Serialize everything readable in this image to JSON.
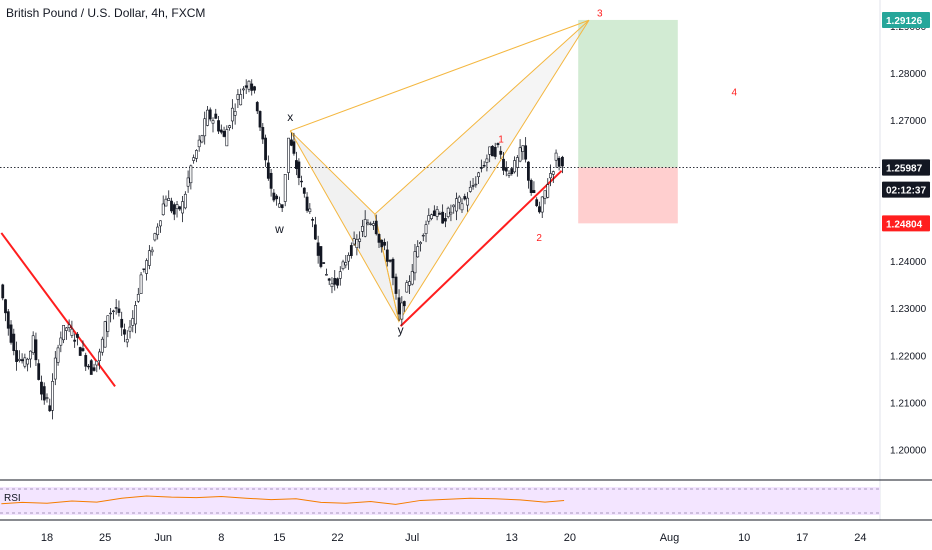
{
  "header": {
    "title": "British Pound / U.S. Dollar, 4h, FXCM"
  },
  "rsi": {
    "label": "RSI"
  },
  "chart_data": {
    "type": "candlestick",
    "title": "British Pound / U.S. Dollar, 4h, FXCM",
    "ylim": [
      1.1935,
      1.2955
    ],
    "y_ticks": [
      "1.20000",
      "1.21000",
      "1.22000",
      "1.23000",
      "1.24000",
      "1.27000",
      "1.28000",
      "1.29000"
    ],
    "x_ticks": [
      {
        "label": "18",
        "day": 18
      },
      {
        "label": "25",
        "day": 25
      },
      {
        "label": "Jun",
        "day": 32
      },
      {
        "label": "8",
        "day": 39
      },
      {
        "label": "15",
        "day": 46
      },
      {
        "label": "22",
        "day": 53
      },
      {
        "label": "Jul",
        "day": 62
      },
      {
        "label": "13",
        "day": 74
      },
      {
        "label": "20",
        "day": 81
      },
      {
        "label": "Aug",
        "day": 93
      },
      {
        "label": "10",
        "day": 102
      },
      {
        "label": "17",
        "day": 109
      },
      {
        "label": "24",
        "day": 116
      }
    ],
    "price_labels": [
      {
        "name": "target",
        "value": "1.29126",
        "price": 1.29126,
        "color": "#26a69a"
      },
      {
        "name": "entry",
        "value": "1.25992",
        "price": 1.25992,
        "color": "#131722"
      },
      {
        "name": "last",
        "value": "1.25987",
        "price": 1.25987,
        "color": "#131722"
      },
      {
        "name": "countdown",
        "value": "02:12:37",
        "price": 1.2552,
        "color": "#131722"
      },
      {
        "name": "stop",
        "value": "1.24804",
        "price": 1.24804,
        "color": "#ff1e1e"
      }
    ],
    "pattern_points": [
      {
        "label": "w",
        "day": 46.0,
        "price": 1.249
      },
      {
        "label": "x",
        "day": 47.3,
        "price": 1.2677
      },
      {
        "label": "y",
        "day": 60.6,
        "price": 1.2275
      },
      {
        "label": "3",
        "day": 83.3,
        "price": 1.291
      }
    ],
    "harmonic": {
      "p0": {
        "day": 47.3,
        "price": 1.2677
      },
      "p1": {
        "day": 57.5,
        "price": 1.25
      },
      "p2": {
        "day": 60.4,
        "price": 1.2272
      },
      "p3": {
        "day": 83.3,
        "price": 1.2912
      }
    },
    "wave_labels": [
      {
        "label": "1",
        "day": 72.7,
        "price": 1.2652
      },
      {
        "label": "2",
        "day": 77.3,
        "price": 1.2443
      },
      {
        "label": "3",
        "day": 84.6,
        "price": 1.292
      },
      {
        "label": "4",
        "day": 100.8,
        "price": 1.2752
      }
    ],
    "trendlines": [
      {
        "from": {
          "day": 12.5,
          "price": 1.246
        },
        "to": {
          "day": 26.2,
          "price": 1.2134
        }
      },
      {
        "from": {
          "day": 60.6,
          "price": 1.2262
        },
        "to": {
          "day": 80.0,
          "price": 1.2592
        }
      }
    ],
    "position": {
      "start_day": 82.0,
      "end_day": 94.0,
      "target": 1.29126,
      "entry": 1.25992,
      "stop": 1.24804
    },
    "ohlc_path": [
      [
        12.5,
        1.235
      ],
      [
        13.5,
        1.226
      ],
      [
        14.5,
        1.22
      ],
      [
        15.5,
        1.218
      ],
      [
        16.5,
        1.223
      ],
      [
        17.5,
        1.212
      ],
      [
        18.5,
        1.209
      ],
      [
        19.5,
        1.223
      ],
      [
        20.5,
        1.226
      ],
      [
        21.5,
        1.224
      ],
      [
        22.5,
        1.22
      ],
      [
        23.5,
        1.217
      ],
      [
        24.5,
        1.22
      ],
      [
        25.5,
        1.229
      ],
      [
        26.5,
        1.23
      ],
      [
        27.5,
        1.223
      ],
      [
        28.5,
        1.228
      ],
      [
        29.5,
        1.237
      ],
      [
        30.5,
        1.241
      ],
      [
        31.5,
        1.248
      ],
      [
        32.5,
        1.254
      ],
      [
        33.5,
        1.25
      ],
      [
        34.5,
        1.252
      ],
      [
        35.5,
        1.26
      ],
      [
        36.5,
        1.265
      ],
      [
        37.5,
        1.271
      ],
      [
        38.5,
        1.27
      ],
      [
        39.5,
        1.266
      ],
      [
        40.5,
        1.272
      ],
      [
        41.5,
        1.276
      ],
      [
        42.5,
        1.279
      ],
      [
        43.5,
        1.273
      ],
      [
        44.5,
        1.261
      ],
      [
        45.5,
        1.253
      ],
      [
        46.5,
        1.252
      ],
      [
        47.3,
        1.266
      ],
      [
        48.5,
        1.258
      ],
      [
        49.5,
        1.252
      ],
      [
        50.5,
        1.245
      ],
      [
        51.5,
        1.238
      ],
      [
        52.5,
        1.235
      ],
      [
        53.5,
        1.237
      ],
      [
        54.5,
        1.242
      ],
      [
        55.5,
        1.244
      ],
      [
        56.5,
        1.248
      ],
      [
        57.5,
        1.249
      ],
      [
        58.5,
        1.243
      ],
      [
        59.5,
        1.24
      ],
      [
        60.6,
        1.228
      ],
      [
        61.5,
        1.234
      ],
      [
        62.5,
        1.241
      ],
      [
        63.5,
        1.247
      ],
      [
        64.5,
        1.251
      ],
      [
        65.5,
        1.249
      ],
      [
        66.5,
        1.25
      ],
      [
        67.5,
        1.252
      ],
      [
        68.5,
        1.253
      ],
      [
        69.5,
        1.256
      ],
      [
        70.5,
        1.26
      ],
      [
        71.5,
        1.263
      ],
      [
        72.5,
        1.264
      ],
      [
        73.5,
        1.259
      ],
      [
        74.5,
        1.26
      ],
      [
        75.5,
        1.264
      ],
      [
        76.5,
        1.255
      ],
      [
        77.5,
        1.25
      ],
      [
        78.5,
        1.257
      ],
      [
        79.5,
        1.262
      ],
      [
        80.3,
        1.2599
      ]
    ],
    "rsi_path": [
      [
        12.5,
        40
      ],
      [
        15,
        45
      ],
      [
        18,
        42
      ],
      [
        21,
        50
      ],
      [
        24,
        46
      ],
      [
        27,
        60
      ],
      [
        30,
        68
      ],
      [
        33,
        64
      ],
      [
        36,
        62
      ],
      [
        39,
        66
      ],
      [
        42,
        60
      ],
      [
        45,
        55
      ],
      [
        48,
        58
      ],
      [
        51,
        45
      ],
      [
        54,
        42
      ],
      [
        57,
        48
      ],
      [
        60,
        38
      ],
      [
        63,
        52
      ],
      [
        66,
        56
      ],
      [
        69,
        60
      ],
      [
        72,
        58
      ],
      [
        75,
        54
      ],
      [
        78,
        46
      ],
      [
        80.3,
        52
      ]
    ]
  }
}
